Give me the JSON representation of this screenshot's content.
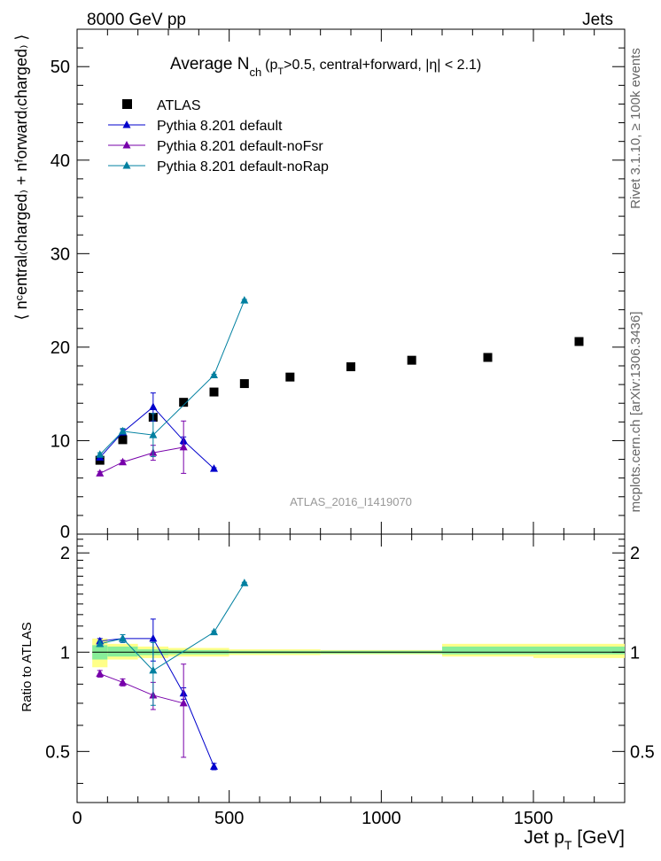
{
  "header": {
    "left": "8000 GeV pp",
    "right": "Jets"
  },
  "side_labels": {
    "rivet": "Rivet 3.1.10, ≥ 100k events",
    "mcplots": "mcplots.cern.ch [arXiv:1306.3436]"
  },
  "title": {
    "main": "Average N",
    "sub": "ch",
    "cuts_open": "(p",
    "cuts_sub": "T",
    "cuts_rest": ">0.5, central+forward, |η| < 2.1)"
  },
  "watermark": "ATLAS_2016_I1419070",
  "axes": {
    "ylabel_main": "⟨ nᶜentral₍charged₎ + nᶠorward₍charged₎ ⟩",
    "ylabel_ratio": "Ratio to ATLAS",
    "xlabel_main": "Jet p",
    "xlabel_sub": "T",
    "xlabel_unit": " [GeV]"
  },
  "chart_data": [
    {
      "type": "scatter",
      "panel": "main",
      "xlim": [
        0,
        1800
      ],
      "ylim": [
        0,
        54
      ],
      "yticks": [
        10,
        20,
        30,
        40,
        50
      ],
      "ytick_labels": [
        "10",
        "20",
        "30",
        "40",
        "50"
      ],
      "bottom_tick_label": "0",
      "xticks_major": [
        0,
        500,
        1000,
        1500
      ],
      "legend_position": "top-left",
      "series": [
        {
          "name": "ATLAS",
          "marker": "square",
          "color": "#000000",
          "x": [
            75,
            150,
            250,
            350,
            450,
            550,
            700,
            900,
            1100,
            1350,
            1650
          ],
          "y": [
            7.9,
            10.1,
            12.5,
            14.1,
            15.2,
            16.1,
            16.8,
            17.9,
            18.6,
            18.9,
            20.6
          ],
          "err": [
            0,
            0,
            0,
            0,
            0,
            0,
            0,
            0,
            0,
            0,
            0
          ]
        },
        {
          "name": "Pythia 8.201 default",
          "marker": "triangle",
          "color": "#0000cc",
          "x": [
            75,
            150,
            250,
            350,
            450
          ],
          "y": [
            8.2,
            10.9,
            13.6,
            10.0,
            7.0
          ],
          "err": [
            0.2,
            0.3,
            1.5,
            0.4,
            0.1
          ]
        },
        {
          "name": "Pythia 8.201 default-noFsr",
          "marker": "triangle",
          "color": "#7700aa",
          "x": [
            75,
            150,
            250,
            350
          ],
          "y": [
            6.5,
            7.7,
            8.7,
            9.3
          ],
          "err": [
            0.2,
            0.2,
            0.8,
            2.8
          ]
        },
        {
          "name": "Pythia 8.201 default-noRap",
          "marker": "triangle",
          "color": "#0080a0",
          "x": [
            75,
            150,
            250,
            450,
            550
          ],
          "y": [
            8.5,
            11.0,
            10.6,
            17.0,
            25.0
          ],
          "err": [
            0.2,
            0.3,
            2.3,
            0.1,
            0.1
          ]
        }
      ]
    },
    {
      "type": "scatter",
      "panel": "ratio",
      "xlim": [
        0,
        1800
      ],
      "ylim": [
        0.35,
        2.28
      ],
      "yticks": [
        0.5,
        1,
        2
      ],
      "ytick_labels": [
        "0.5",
        "1",
        "2"
      ],
      "xticks_major": [
        0,
        500,
        1000,
        1500
      ],
      "xtick_labels": [
        "0",
        "500",
        "1000",
        "1500"
      ],
      "reference_line": 1,
      "uncertainty_bins": [
        {
          "x0": 50,
          "x1": 100,
          "lo": 0.95,
          "hi": 1.05,
          "lo2": 0.9,
          "hi2": 1.1
        },
        {
          "x0": 100,
          "x1": 200,
          "lo": 0.97,
          "hi": 1.04,
          "lo2": 0.95,
          "hi2": 1.06
        },
        {
          "x0": 200,
          "x1": 300,
          "lo": 0.98,
          "hi": 1.02,
          "lo2": 0.96,
          "hi2": 1.04
        },
        {
          "x0": 300,
          "x1": 500,
          "lo": 0.985,
          "hi": 1.015,
          "lo2": 0.97,
          "hi2": 1.03
        },
        {
          "x0": 500,
          "x1": 800,
          "lo": 0.99,
          "hi": 1.01,
          "lo2": 0.98,
          "hi2": 1.02
        },
        {
          "x0": 800,
          "x1": 1200,
          "lo": 0.99,
          "hi": 1.01,
          "lo2": 0.985,
          "hi2": 1.015
        },
        {
          "x0": 1200,
          "x1": 1500,
          "lo": 0.985,
          "hi": 1.04,
          "lo2": 0.97,
          "hi2": 1.06
        },
        {
          "x0": 1500,
          "x1": 1800,
          "lo": 0.985,
          "hi": 1.04,
          "lo2": 0.96,
          "hi2": 1.06
        }
      ],
      "band_colors": {
        "inner": "#88ee99",
        "outer": "#ffff88"
      },
      "series": [
        {
          "name": "Pythia 8.201 default",
          "color": "#0000cc",
          "x": [
            75,
            150,
            250,
            350,
            450
          ],
          "y": [
            1.08,
            1.1,
            1.1,
            0.75,
            0.45
          ],
          "err": [
            0.02,
            0.03,
            0.16,
            0.03,
            0.01
          ]
        },
        {
          "name": "Pythia 8.201 default-noFsr",
          "color": "#7700aa",
          "x": [
            75,
            150,
            250,
            350
          ],
          "y": [
            0.86,
            0.81,
            0.74,
            0.7
          ],
          "err": [
            0.02,
            0.02,
            0.07,
            0.22
          ]
        },
        {
          "name": "Pythia 8.201 default-noRap",
          "color": "#0080a0",
          "x": [
            75,
            150,
            250,
            450,
            550
          ],
          "y": [
            1.06,
            1.1,
            0.88,
            1.15,
            1.62
          ],
          "err": [
            0.02,
            0.03,
            0.19,
            0.01,
            0.01
          ]
        }
      ]
    }
  ]
}
